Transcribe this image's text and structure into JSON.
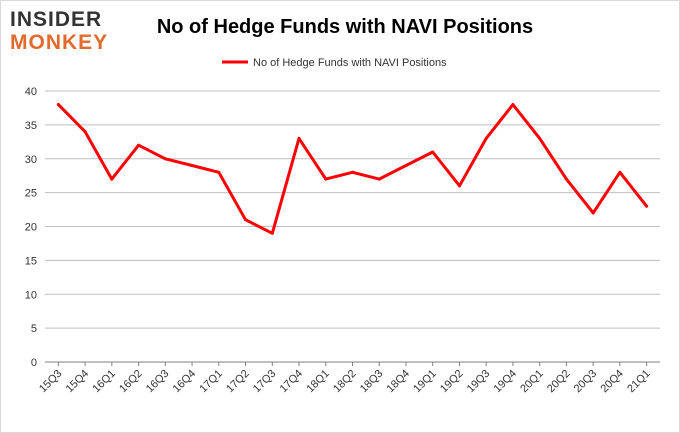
{
  "logo": {
    "line1": "INSIDER",
    "line2": "MONKEY"
  },
  "chart_data": {
    "type": "line",
    "title": "No of Hedge Funds with NAVI Positions",
    "xlabel": "",
    "ylabel": "",
    "categories": [
      "15Q3",
      "15Q4",
      "16Q1",
      "16Q2",
      "16Q3",
      "16Q4",
      "17Q1",
      "17Q2",
      "17Q3",
      "17Q4",
      "18Q1",
      "18Q2",
      "18Q3",
      "18Q4",
      "19Q1",
      "19Q2",
      "19Q3",
      "19Q4",
      "20Q1",
      "20Q2",
      "20Q3",
      "20Q4",
      "21Q1"
    ],
    "series": [
      {
        "name": "No of Hedge Funds with NAVI Positions",
        "color": "#ff0000",
        "values": [
          38,
          34,
          27,
          32,
          30,
          29,
          28,
          21,
          19,
          33,
          27,
          28,
          27,
          29,
          31,
          26,
          33,
          38,
          33,
          27,
          22,
          28,
          23
        ]
      }
    ],
    "ylim": [
      0,
      40
    ],
    "yticks": [
      0,
      5,
      10,
      15,
      20,
      25,
      30,
      35,
      40
    ],
    "grid": true,
    "legend": "top-center"
  }
}
